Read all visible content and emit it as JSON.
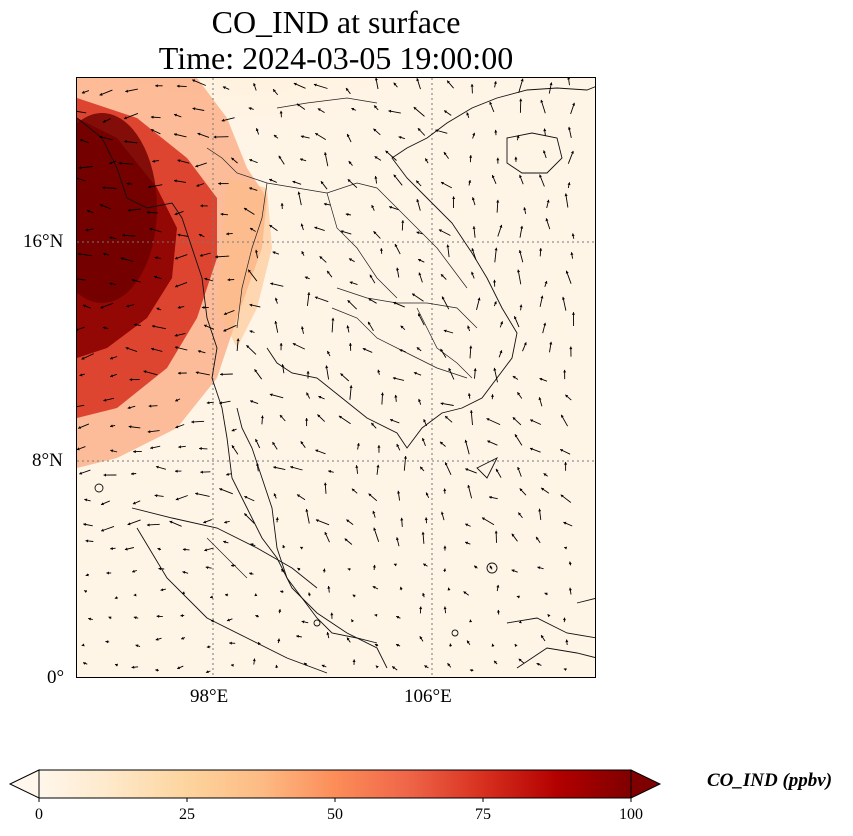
{
  "title": {
    "line1": "CO_IND at surface",
    "line2": "Time: 2024-03-05 19:00:00"
  },
  "map": {
    "variable": "CO_IND",
    "level": "surface",
    "extent": {
      "lon_min": 93.0,
      "lon_max": 112.0,
      "lat_min": 0.0,
      "lat_max": 22.0
    },
    "lat_ticks": [
      {
        "value": 16,
        "label": "16°N"
      },
      {
        "value": 8,
        "label": "8°N"
      },
      {
        "value": 0,
        "label": "0°"
      }
    ],
    "lon_ticks": [
      {
        "value": 98,
        "label": "98°E"
      },
      {
        "value": 106,
        "label": "106°E"
      }
    ],
    "gridlines": true,
    "features": [
      "coastlines",
      "country-borders",
      "wind-vectors"
    ]
  },
  "colorbar": {
    "label": "CO_IND (ppbv)",
    "colormap": "OrRd",
    "min": 0,
    "max": 100,
    "extend": "both",
    "ticks": [
      {
        "value": 0,
        "label": "0"
      },
      {
        "value": 25,
        "label": "25"
      },
      {
        "value": 50,
        "label": "50"
      },
      {
        "value": 75,
        "label": "75"
      },
      {
        "value": 100,
        "label": "100"
      }
    ],
    "colors": [
      "#fff7ec",
      "#fee8c8",
      "#fdd49e",
      "#fdbb84",
      "#fc8d59",
      "#ef6548",
      "#d7301f",
      "#b30000",
      "#7f0000"
    ]
  }
}
